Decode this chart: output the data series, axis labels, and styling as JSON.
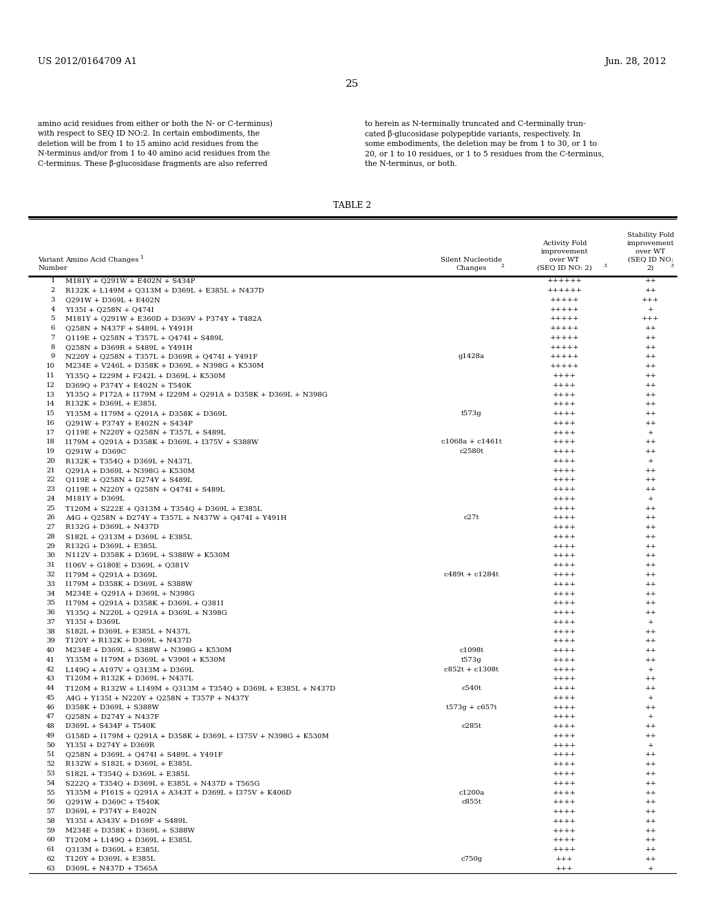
{
  "header_left": "US 2012/0164709 A1",
  "header_right": "Jun. 28, 2012",
  "page_number": "25",
  "paragraph_left": "amino acid residues from either or both the N- or C-terminus)\nwith respect to SEQ ID NO:2. In certain embodiments, the\ndeletion will be from 1 to 15 amino acid residues from the\nN-terminus and/or from 1 to 40 amino acid residues from the\nC-terminus. These β-glucosidase fragments are also referred",
  "paragraph_right": "to herein as N-terminally truncated and C-terminally trun-\ncated β-glucosidase polypeptide variants, respectively. In\nsome embodiments, the deletion may be from 1 to 30, or 1 to\n20, or 1 to 10 residues, or 1 to 5 residues from the C-terminus,\nthe N-terminus, or both.",
  "table_title": "TABLE 2",
  "rows": [
    [
      "1",
      "M181Y + Q291W + E402N + S434P",
      "",
      "++++++",
      "++"
    ],
    [
      "2",
      "R132K + L149M + Q313M + D369L + E385L + N437D",
      "",
      "++++++",
      "++"
    ],
    [
      "3",
      "Q291W + D369L + E402N",
      "",
      "+++++",
      "+++"
    ],
    [
      "4",
      "Y135I + Q258N + Q474I",
      "",
      "+++++",
      "+"
    ],
    [
      "5",
      "M181Y + Q291W + E360D + D369V + P374Y + T482A",
      "",
      "+++++",
      "+++"
    ],
    [
      "6",
      "Q258N + N437F + S489L + Y491H",
      "",
      "+++++",
      "++"
    ],
    [
      "7",
      "Q119E + Q258N + T357L + Q474I + S489L",
      "",
      "+++++",
      "++"
    ],
    [
      "8",
      "Q258N + D369R + S489L + Y491H",
      "",
      "+++++",
      "++"
    ],
    [
      "9",
      "N220Y + Q258N + T357L + D369R + Q474I + Y491F",
      "g1428a",
      "+++++",
      "++"
    ],
    [
      "10",
      "M234E + V246L + D358K + D369L + N398G + K530M",
      "",
      "+++++",
      "++"
    ],
    [
      "11",
      "Y135Q + I229M + F242L + D369L + K530M",
      "",
      "++++",
      "++"
    ],
    [
      "12",
      "D369Q + P374Y + E402N + T540K",
      "",
      "++++",
      "++"
    ],
    [
      "13",
      "Y135Q + P172A + I179M + I229M + Q291A + D358K + D369L + N398G",
      "",
      "++++",
      "++"
    ],
    [
      "14",
      "R132K + D369L + E385L",
      "",
      "++++",
      "++"
    ],
    [
      "15",
      "Y135M + I179M + Q291A + D358K + D369L",
      "t573g",
      "++++",
      "++"
    ],
    [
      "16",
      "Q291W + P374Y + E402N + S434P",
      "",
      "++++",
      "++"
    ],
    [
      "17",
      "Q119E + N220Y + Q258N + T357L + S489L",
      "",
      "++++",
      "+"
    ],
    [
      "18",
      "I179M + Q291A + D358K + D369L + I375V + S388W",
      "c1068a + c1461t",
      "++++",
      "++"
    ],
    [
      "19",
      "Q291W + D369C",
      "c2580t",
      "++++",
      "++"
    ],
    [
      "20",
      "R132K + T354Q + D369L + N437L",
      "",
      "++++",
      "+"
    ],
    [
      "21",
      "Q291A + D369L + N398G + K530M",
      "",
      "++++",
      "++"
    ],
    [
      "22",
      "Q119E + Q258N + D274Y + S489L",
      "",
      "++++",
      "++"
    ],
    [
      "23",
      "Q119E + N220Y + Q258N + Q474I + S489L",
      "",
      "++++",
      "++"
    ],
    [
      "24",
      "M181Y + D369L",
      "",
      "++++",
      "+"
    ],
    [
      "25",
      "T120M + S222E + Q313M + T354Q + D369L + E385L",
      "",
      "++++",
      "++"
    ],
    [
      "26",
      "A4G + Q258N + D274Y + T357L + N437W + Q474I + Y491H",
      "c27t",
      "++++",
      "++"
    ],
    [
      "27",
      "R132G + D369L + N437D",
      "",
      "++++",
      "++"
    ],
    [
      "28",
      "S182L + Q313M + D369L + E385L",
      "",
      "++++",
      "++"
    ],
    [
      "29",
      "R132G + D369L + E385L",
      "",
      "++++",
      "++"
    ],
    [
      "30",
      "N112V + D358K + D369L + S388W + K530M",
      "",
      "++++",
      "++"
    ],
    [
      "31",
      "I106V + G180E + D369L + Q381V",
      "",
      "++++",
      "++"
    ],
    [
      "32",
      "I179M + Q291A + D369L",
      "c489t + c1284t",
      "++++",
      "++"
    ],
    [
      "33",
      "I179M + D358K + D369L + S388W",
      "",
      "++++",
      "++"
    ],
    [
      "34",
      "M234E + Q291A + D369L + N398G",
      "",
      "++++",
      "++"
    ],
    [
      "35",
      "I179M + Q291A + D358K + D369L + Q381I",
      "",
      "++++",
      "++"
    ],
    [
      "36",
      "Y135Q + N220L + Q291A + D369L + N398G",
      "",
      "++++",
      "++"
    ],
    [
      "37",
      "Y135I + D369L",
      "",
      "++++",
      "+"
    ],
    [
      "38",
      "S182L + D369L + E385L + N437L",
      "",
      "++++",
      "++"
    ],
    [
      "39",
      "T120Y + R132K + D369L + N437D",
      "",
      "++++",
      "++"
    ],
    [
      "40",
      "M234E + D369L + S388W + N398G + K530M",
      "c1098t",
      "++++",
      "++"
    ],
    [
      "41",
      "Y135M + I179M + D369L + V390I + K530M",
      "t573g",
      "++++",
      "++"
    ],
    [
      "42",
      "L149Q + A197V + Q313M + D369L",
      "c852t + c1308t",
      "++++",
      "+"
    ],
    [
      "43",
      "T120M + R132K + D369L + N437L",
      "",
      "++++",
      "++"
    ],
    [
      "44",
      "T120M + R132W + L149M + Q313M + T354Q + D369L + E385L + N437D",
      "c540t",
      "++++",
      "++"
    ],
    [
      "45",
      "A4G + Y135I + N220Y + Q258N + T357P + N437Y",
      "",
      "++++",
      "+"
    ],
    [
      "46",
      "D358K + D369L + S388W",
      "t573g + c657t",
      "++++",
      "++"
    ],
    [
      "47",
      "Q258N + D274Y + N437F",
      "",
      "++++",
      "+"
    ],
    [
      "48",
      "D369L + S434P + T540K",
      "c285t",
      "++++",
      "++"
    ],
    [
      "49",
      "G158D + I179M + Q291A + D358K + D369L + I375V + N398G + K530M",
      "",
      "++++",
      "++"
    ],
    [
      "50",
      "Y135I + D274Y + D369R",
      "",
      "++++",
      "+"
    ],
    [
      "51",
      "Q258N + D369L + Q474I + S489L + Y491F",
      "",
      "++++",
      "++"
    ],
    [
      "52",
      "R132W + S182L + D369L + E385L",
      "",
      "++++",
      "++"
    ],
    [
      "53",
      "S182L + T354Q + D369L + E385L",
      "",
      "++++",
      "++"
    ],
    [
      "54",
      "S222Q + T354Q + D369L + E385L + N437D + T565G",
      "",
      "++++",
      "++"
    ],
    [
      "55",
      "Y135M + P161S + Q291A + A343T + D369L + I375V + K406D",
      "c1200a",
      "++++",
      "++"
    ],
    [
      "56",
      "Q291W + D369C + T540K",
      "c855t",
      "++++",
      "++"
    ],
    [
      "57",
      "D369L + P374Y + E402N",
      "",
      "++++",
      "++"
    ],
    [
      "58",
      "Y135I + A343V + D169F + S489L",
      "",
      "++++",
      "++"
    ],
    [
      "59",
      "M234E + D358K + D369L + S388W",
      "",
      "++++",
      "++"
    ],
    [
      "60",
      "T120M + L149Q + D369L + E385L",
      "",
      "++++",
      "++"
    ],
    [
      "61",
      "Q313M + D369L + E385L",
      "",
      "++++",
      "++"
    ],
    [
      "62",
      "T120Y + D369L + E385L",
      "c750g",
      "+++",
      "++"
    ],
    [
      "63",
      "D369L + N437D + T565A",
      "",
      "+++",
      "+"
    ]
  ]
}
